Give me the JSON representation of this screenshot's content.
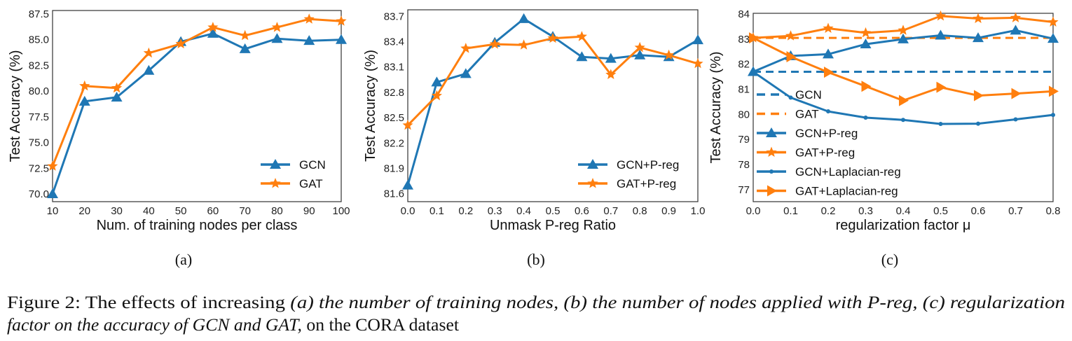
{
  "colors": {
    "blue": "#1f77b4",
    "orange": "#ff7f0e"
  },
  "chart_data": [
    {
      "type": "line",
      "subcaption": "(a)",
      "xlabel": "Num. of training nodes per class",
      "ylabel": "Test Accuracy (%)",
      "x": [
        10,
        20,
        30,
        40,
        50,
        60,
        70,
        80,
        90,
        100
      ],
      "xticks": [
        "10",
        "20",
        "30",
        "40",
        "50",
        "60",
        "70",
        "80",
        "90",
        "100"
      ],
      "yticks": [
        "70.0",
        "72.5",
        "75.0",
        "77.5",
        "80.0",
        "82.5",
        "85.0",
        "87.5"
      ],
      "xlim": [
        10,
        100
      ],
      "ylim": [
        69.25,
        87.84
      ],
      "grid": false,
      "legend_position": "bottom-right",
      "series": [
        {
          "name": "GCN",
          "color": "#1f77b4",
          "marker": "triangle-up",
          "dashed": false,
          "values": [
            70.0,
            79.0,
            79.4,
            82.0,
            84.8,
            85.6,
            84.1,
            85.1,
            84.9,
            85.0
          ]
        },
        {
          "name": "GAT",
          "color": "#ff7f0e",
          "marker": "star",
          "dashed": false,
          "values": [
            72.7,
            80.5,
            80.3,
            83.7,
            84.6,
            86.2,
            85.4,
            86.2,
            87.0,
            86.8
          ]
        }
      ]
    },
    {
      "type": "line",
      "subcaption": "(b)",
      "xlabel": "Unmask P-reg Ratio",
      "ylabel": "Test Accuracy (%)",
      "x": [
        0.0,
        0.1,
        0.2,
        0.3,
        0.4,
        0.5,
        0.6,
        0.7,
        0.8,
        0.9,
        1.0
      ],
      "xticks": [
        "0.0",
        "0.1",
        "0.2",
        "0.3",
        "0.4",
        "0.5",
        "0.6",
        "0.7",
        "0.8",
        "0.9",
        "1.0"
      ],
      "yticks": [
        "81.6",
        "81.9",
        "82.2",
        "82.5",
        "82.8",
        "83.1",
        "83.4",
        "83.7"
      ],
      "xlim": [
        0,
        1
      ],
      "ylim": [
        81.506,
        83.777
      ],
      "grid": false,
      "legend_position": "bottom-right",
      "series": [
        {
          "name": "GCN+P-reg",
          "color": "#1f77b4",
          "marker": "triangle-up",
          "dashed": false,
          "values": [
            81.7,
            82.92,
            83.02,
            83.39,
            83.67,
            83.46,
            83.22,
            83.2,
            83.24,
            83.22,
            83.42
          ]
        },
        {
          "name": "GAT+P-reg",
          "color": "#ff7f0e",
          "marker": "star",
          "dashed": false,
          "values": [
            82.41,
            82.76,
            83.32,
            83.37,
            83.36,
            83.44,
            83.46,
            83.01,
            83.33,
            83.24,
            83.14
          ]
        }
      ]
    },
    {
      "type": "line",
      "subcaption": "(c)",
      "xlabel": "regularization factor μ",
      "ylabel": "Test Accuracy (%)",
      "x": [
        0.0,
        0.1,
        0.2,
        0.3,
        0.4,
        0.5,
        0.6,
        0.7,
        0.8
      ],
      "xticks": [
        "0.0",
        "0.1",
        "0.2",
        "0.3",
        "0.4",
        "0.5",
        "0.6",
        "0.7",
        "0.8"
      ],
      "yticks": [
        "77",
        "78",
        "79",
        "80",
        "81",
        "82",
        "83",
        "84"
      ],
      "xlim": [
        0,
        0.8
      ],
      "ylim": [
        76.52,
        84.03
      ],
      "grid": false,
      "legend_position": "center-left",
      "series": [
        {
          "name": "GCN",
          "color": "#1f77b4",
          "marker": "none",
          "dashed": true,
          "values": [
            81.7,
            81.7,
            81.7,
            81.7,
            81.7,
            81.7,
            81.7,
            81.7,
            81.7
          ]
        },
        {
          "name": "GAT",
          "color": "#ff7f0e",
          "marker": "none",
          "dashed": true,
          "values": [
            83.05,
            83.05,
            83.05,
            83.05,
            83.05,
            83.05,
            83.05,
            83.05,
            83.05
          ]
        },
        {
          "name": "GCN+P-reg",
          "color": "#1f77b4",
          "marker": "triangle-up",
          "dashed": false,
          "values": [
            81.7,
            82.33,
            82.4,
            82.8,
            83.0,
            83.15,
            83.05,
            83.35,
            83.02
          ]
        },
        {
          "name": "GAT+P-reg",
          "color": "#ff7f0e",
          "marker": "star",
          "dashed": false,
          "values": [
            83.05,
            83.13,
            83.43,
            83.25,
            83.35,
            83.92,
            83.82,
            83.85,
            83.68
          ]
        },
        {
          "name": "GCN+Laplacian-reg",
          "color": "#1f77b4",
          "marker": "dot",
          "dashed": false,
          "values": [
            81.7,
            80.67,
            80.12,
            79.87,
            79.78,
            79.62,
            79.63,
            79.8,
            79.98
          ]
        },
        {
          "name": "GAT+Laplacian-reg",
          "color": "#ff7f0e",
          "marker": "triangle-right",
          "dashed": false,
          "values": [
            83.05,
            82.3,
            81.68,
            81.12,
            80.55,
            81.08,
            80.75,
            80.83,
            80.92
          ]
        }
      ]
    }
  ],
  "caption": {
    "prefix": "Figure 2: The effects of increasing ",
    "italic_1": "(a) the number of training nodes, (b) the number of nodes applied with P-reg, (c) regularization",
    "italic_2": "factor on the accuracy of GCN and GAT,",
    "suffix": " on the CORA dataset"
  }
}
